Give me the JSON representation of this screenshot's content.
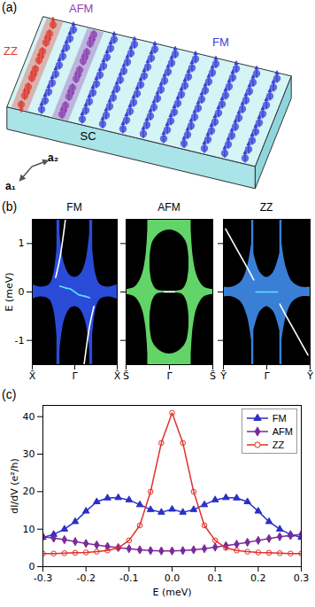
{
  "diagram": {
    "panel_label": "(a)",
    "labels": [
      {
        "text": "ZZ",
        "color": "#e03a2f"
      },
      {
        "text": "AFM",
        "color": "#8e3fb0"
      },
      {
        "text": "FM",
        "color": "#3a3fd8"
      }
    ],
    "substrate": "SC",
    "vectors": [
      "a₁",
      "a₂"
    ]
  },
  "chart_data": [
    {
      "type": "band_structure",
      "panel_label": "(b)",
      "title": "FM",
      "ylabel": "E (meV)",
      "color": "#2a4bd8",
      "xlim": [
        -1,
        1
      ],
      "xticks": [
        {
          "value": -1,
          "label": "X̄"
        },
        {
          "value": 0,
          "label": "Γ̄"
        },
        {
          "value": 1,
          "label": "X̄"
        }
      ],
      "ylim": [
        -1.5,
        1.5
      ],
      "yticks": [
        -1,
        0,
        1
      ],
      "bulk": [
        {
          "color": "#000000",
          "x": [
            -1,
            -0.8,
            -0.6,
            -0.5,
            -0.42
          ],
          "low": [
            0.15,
            0.1,
            0.15,
            0.35,
            0.9
          ],
          "high": [
            1.5,
            1.5,
            1.5,
            1.5,
            1.5
          ]
        },
        {
          "color": "#000000",
          "x": [
            -1,
            -0.8,
            -0.6,
            -0.5,
            -0.42
          ],
          "low": [
            -1.5,
            -1.5,
            -1.5,
            -1.5,
            -1.5
          ],
          "high": [
            -0.15,
            -0.1,
            -0.15,
            -0.35,
            -0.9
          ]
        },
        {
          "color": "#000000",
          "x": [
            -0.35,
            -0.25,
            -0.12,
            0,
            0.12,
            0.25,
            0.35
          ],
          "low": [
            1.2,
            0.6,
            0.35,
            0.3,
            0.35,
            0.6,
            1.2
          ],
          "high": [
            1.5,
            1.5,
            1.5,
            1.5,
            1.5,
            1.5,
            1.5
          ]
        },
        {
          "color": "#000000",
          "x": [
            -0.35,
            -0.25,
            -0.12,
            0,
            0.12,
            0.25,
            0.35
          ],
          "low": [
            -1.5,
            -1.5,
            -1.5,
            -1.5,
            -1.5,
            -1.5,
            -1.5
          ],
          "high": [
            -1.2,
            -0.6,
            -0.35,
            -0.3,
            -0.35,
            -0.6,
            -1.2
          ]
        },
        {
          "color": "#000000",
          "x": [
            0.42,
            0.5,
            0.6,
            0.8,
            1
          ],
          "low": [
            0.9,
            0.35,
            0.15,
            0.1,
            0.15
          ],
          "high": [
            1.5,
            1.5,
            1.5,
            1.5,
            1.5
          ]
        },
        {
          "color": "#000000",
          "x": [
            0.42,
            0.5,
            0.6,
            0.8,
            1
          ],
          "low": [
            -1.5,
            -1.5,
            -1.5,
            -1.5,
            -1.5
          ],
          "high": [
            -0.9,
            -0.35,
            -0.15,
            -0.1,
            -0.15
          ]
        }
      ],
      "edge_states": [
        {
          "color": "#5fe0ff",
          "x": [
            -0.35,
            -0.2,
            -0.1,
            0,
            0.1,
            0.2,
            0.35
          ],
          "values": [
            0.12,
            0.08,
            0.06,
            0,
            -0.06,
            -0.08,
            -0.12
          ]
        },
        {
          "color": "#ffffff",
          "x": [
            -0.45,
            -0.35,
            -0.28,
            -0.22
          ],
          "values": [
            0.3,
            0.7,
            1.1,
            1.5
          ]
        },
        {
          "color": "#ffffff",
          "x": [
            0.22,
            0.28,
            0.35,
            0.45
          ],
          "values": [
            -1.5,
            -1.1,
            -0.7,
            -0.3
          ]
        }
      ]
    },
    {
      "type": "band_structure",
      "title": "AFM",
      "color": "#62d468",
      "tick_labels": "x",
      "xlim": [
        -1,
        1
      ],
      "xticks": [
        {
          "value": -1,
          "label": "S̄"
        },
        {
          "value": 0,
          "label": "Γ̄"
        },
        {
          "value": 1,
          "label": "S̄"
        }
      ],
      "ylim": [
        -1.5,
        1.5
      ],
      "yticks": [
        -1,
        0,
        1
      ],
      "bulk": [
        {
          "color": "#000000",
          "x": [
            -1,
            -0.8,
            -0.65,
            -0.55,
            -0.5
          ],
          "low": [
            0.05,
            0.1,
            0.3,
            0.7,
            1.3
          ],
          "high": [
            1.5,
            1.5,
            1.5,
            1.5,
            1.5
          ]
        },
        {
          "color": "#000000",
          "x": [
            -1,
            -0.8,
            -0.65,
            -0.55,
            -0.5
          ],
          "low": [
            -1.5,
            -1.5,
            -1.5,
            -1.5,
            -1.5
          ],
          "high": [
            -0.05,
            -0.1,
            -0.3,
            -0.7,
            -1.3
          ]
        },
        {
          "color": "#000000",
          "x": [
            -0.45,
            -0.4,
            -0.3,
            -0.15,
            0,
            0.15,
            0.3,
            0.4,
            0.45
          ],
          "low": [
            0.5,
            0.2,
            0.05,
            0.02,
            0.02,
            0.02,
            0.05,
            0.2,
            0.5
          ],
          "high": [
            0.7,
            1.0,
            1.15,
            1.25,
            1.28,
            1.25,
            1.15,
            1.0,
            0.7
          ]
        },
        {
          "color": "#000000",
          "x": [
            -0.45,
            -0.4,
            -0.3,
            -0.15,
            0,
            0.15,
            0.3,
            0.4,
            0.45
          ],
          "low": [
            -0.7,
            -1.0,
            -1.15,
            -1.25,
            -1.28,
            -1.25,
            -1.15,
            -1.0,
            -0.7
          ],
          "high": [
            -0.5,
            -0.2,
            -0.05,
            -0.02,
            -0.02,
            -0.02,
            -0.05,
            -0.2,
            -0.5
          ]
        },
        {
          "color": "#000000",
          "x": [
            0.5,
            0.55,
            0.65,
            0.8,
            1
          ],
          "low": [
            1.3,
            0.7,
            0.3,
            0.1,
            0.05
          ],
          "high": [
            1.5,
            1.5,
            1.5,
            1.5,
            1.5
          ]
        },
        {
          "color": "#000000",
          "x": [
            0.5,
            0.55,
            0.65,
            0.8,
            1
          ],
          "low": [
            -1.5,
            -1.5,
            -1.5,
            -1.5,
            -1.5
          ],
          "high": [
            -1.3,
            -0.7,
            -0.3,
            -0.1,
            -0.05
          ]
        }
      ],
      "edge_states": [
        {
          "color": "#ffffff",
          "x": [
            -0.12,
            0,
            0.12
          ],
          "values": [
            0,
            0,
            0
          ]
        }
      ]
    },
    {
      "type": "band_structure",
      "title": "ZZ",
      "color": "#3a7fd6",
      "tick_labels": "x",
      "xlim": [
        -1,
        1
      ],
      "xticks": [
        {
          "value": -1,
          "label": "Ȳ"
        },
        {
          "value": 0,
          "label": "Γ̄"
        },
        {
          "value": 1,
          "label": "Ȳ"
        }
      ],
      "ylim": [
        -1.5,
        1.5
      ],
      "yticks": [
        -1,
        0,
        1
      ],
      "bulk": [
        {
          "color": "#000000",
          "x": [
            -1,
            -0.8,
            -0.6,
            -0.45,
            -0.35
          ],
          "low": [
            0.1,
            0.1,
            0.2,
            0.5,
            1.0
          ],
          "high": [
            1.5,
            1.5,
            1.5,
            1.5,
            1.5
          ]
        },
        {
          "color": "#000000",
          "x": [
            -1,
            -0.8,
            -0.6,
            -0.45,
            -0.35
          ],
          "low": [
            -1.5,
            -1.5,
            -1.5,
            -1.5,
            -1.5
          ],
          "high": [
            -0.1,
            -0.1,
            -0.2,
            -0.5,
            -1.0
          ]
        },
        {
          "color": "#000000",
          "x": [
            -0.3,
            -0.15,
            0,
            0.15,
            0.3
          ],
          "low": [
            0.8,
            0.4,
            0.3,
            0.4,
            0.8
          ],
          "high": [
            1.5,
            1.5,
            1.5,
            1.5,
            1.5
          ]
        },
        {
          "color": "#000000",
          "x": [
            -0.3,
            -0.15,
            0,
            0.15,
            0.3
          ],
          "low": [
            -1.5,
            -1.5,
            -1.5,
            -1.5,
            -1.5
          ],
          "high": [
            -0.8,
            -0.4,
            -0.3,
            -0.4,
            -0.8
          ]
        },
        {
          "color": "#000000",
          "x": [
            0.35,
            0.45,
            0.6,
            0.8,
            1
          ],
          "low": [
            1.0,
            0.5,
            0.2,
            0.1,
            0.1
          ],
          "high": [
            1.5,
            1.5,
            1.5,
            1.5,
            1.5
          ]
        },
        {
          "color": "#000000",
          "x": [
            0.35,
            0.45,
            0.6,
            0.8,
            1
          ],
          "low": [
            -1.5,
            -1.5,
            -1.5,
            -1.5,
            -1.5
          ],
          "high": [
            -1.0,
            -0.5,
            -0.2,
            -0.1,
            -0.1
          ]
        }
      ],
      "edge_states": [
        {
          "color": "#5fe0ff",
          "x": [
            -0.25,
            0,
            0.25
          ],
          "values": [
            0,
            0,
            0
          ]
        },
        {
          "color": "#ffffff",
          "x": [
            -0.95,
            -0.7,
            -0.45,
            -0.3
          ],
          "values": [
            1.3,
            0.9,
            0.5,
            0.25
          ]
        },
        {
          "color": "#ffffff",
          "x": [
            0.3,
            0.45,
            0.7,
            0.95
          ],
          "values": [
            -0.25,
            -0.5,
            -0.9,
            -1.3
          ]
        }
      ]
    },
    {
      "type": "line",
      "panel_label": "(c)",
      "xlabel": "E (meV)",
      "ylabel": "dI/dV (e²/h)",
      "legend": "top-right",
      "xlim": [
        -0.3,
        0.3
      ],
      "xticks": [
        -0.3,
        -0.2,
        -0.1,
        {
          "value": 0,
          "label": "0.0"
        },
        0.1,
        0.2,
        0.3
      ],
      "ylim": [
        0,
        43
      ],
      "yticks": [
        0,
        10,
        20,
        30,
        40
      ],
      "x": [
        -0.3,
        -0.275,
        -0.25,
        -0.225,
        -0.2,
        -0.175,
        -0.15,
        -0.125,
        -0.1,
        -0.075,
        -0.05,
        -0.025,
        0,
        0.025,
        0.05,
        0.075,
        0.1,
        0.125,
        0.15,
        0.175,
        0.2,
        0.225,
        0.25,
        0.275,
        0.3
      ],
      "series": [
        {
          "name": "FM",
          "color": "#2a2fc8",
          "marker": "triangle",
          "values": [
            7.8,
            8.6,
            10.0,
            12.0,
            14.8,
            17.3,
            18.3,
            18.4,
            17.8,
            16.5,
            15.2,
            14.5,
            15.3,
            14.5,
            15.2,
            16.5,
            17.8,
            18.4,
            18.3,
            17.3,
            14.8,
            12.0,
            10.0,
            8.6,
            7.8
          ]
        },
        {
          "name": "AFM",
          "color": "#7a2a9a",
          "marker": "diamond",
          "values": [
            8.0,
            7.6,
            7.2,
            6.7,
            6.2,
            5.8,
            5.4,
            5.1,
            4.8,
            4.5,
            4.3,
            4.2,
            4.2,
            4.3,
            4.5,
            4.8,
            5.2,
            5.6,
            6.0,
            6.5,
            7.0,
            7.5,
            8.0,
            8.3,
            8.6
          ]
        },
        {
          "name": "ZZ",
          "color": "#e0302a",
          "marker": "circle",
          "values": [
            3.5,
            3.5,
            3.6,
            3.7,
            3.8,
            4.0,
            4.3,
            5.0,
            7.0,
            11.0,
            20.0,
            33.0,
            41.0,
            33.0,
            20.0,
            11.0,
            7.0,
            5.0,
            4.3,
            4.0,
            3.8,
            3.7,
            3.6,
            3.5,
            3.5
          ]
        }
      ]
    }
  ]
}
